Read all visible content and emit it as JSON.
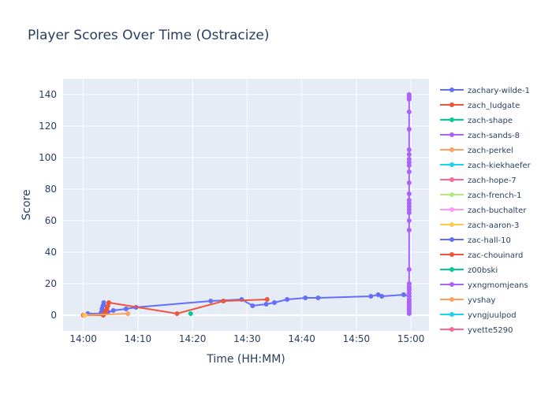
{
  "chart_data": {
    "type": "line",
    "title": "Player Scores Over Time (Ostracize)",
    "xlabel": "Time (HH:MM)",
    "ylabel": "Score",
    "x_ticks": [
      "14:00",
      "14:10",
      "14:20",
      "14:30",
      "14:40",
      "14:50",
      "15:00"
    ],
    "x_range_minutes": [
      -3.7,
      63.3
    ],
    "y_ticks": [
      0,
      20,
      40,
      60,
      80,
      100,
      120,
      140
    ],
    "ylim": [
      -10,
      150
    ],
    "grid": true,
    "legend_placement": "right",
    "series": [
      {
        "name": "zachary-wilde-1",
        "color": "#636efa",
        "x": [
          "14:00:50",
          "14:03:10",
          "14:03:20",
          "14:03:25",
          "14:03:35",
          "14:03:45",
          "14:04:30",
          "14:05:30",
          "14:07:50",
          "14:09:40",
          "14:23:20",
          "14:29:00",
          "14:31:00",
          "14:33:30",
          "14:35:00",
          "14:37:20",
          "14:40:40",
          "14:43:00",
          "14:52:40",
          "14:54:00",
          "14:54:40",
          "14:58:40",
          "14:59:40"
        ],
        "y": [
          1,
          1,
          2,
          4,
          6,
          8,
          2,
          3,
          4,
          5,
          9,
          10,
          6,
          7,
          8,
          10,
          11,
          11,
          12,
          13,
          12,
          13,
          12
        ]
      },
      {
        "name": "zach_ludgate",
        "color": "#ef553b",
        "x": [
          "14:00:00",
          "14:03:40",
          "14:03:50",
          "14:04:00",
          "14:04:10",
          "14:04:20",
          "14:04:30",
          "14:04:40",
          "14:17:10",
          "14:25:40",
          "14:33:40"
        ],
        "y": [
          0,
          0,
          1,
          2,
          3,
          4,
          6,
          8,
          1,
          9,
          10
        ]
      },
      {
        "name": "zach-shape",
        "color": "#00cc96",
        "x": [
          "14:19:40"
        ],
        "y": [
          1
        ]
      },
      {
        "name": "zach-sands-8",
        "color": "#ab63fa",
        "x": [
          "14:59:40",
          "14:59:40",
          "14:59:40",
          "14:59:40",
          "14:59:40",
          "14:59:40",
          "14:59:40",
          "14:59:40",
          "14:59:40",
          "14:59:40",
          "14:59:40",
          "14:59:40",
          "14:59:40",
          "14:59:40",
          "14:59:40",
          "14:59:40",
          "14:59:40",
          "14:59:40",
          "14:59:40",
          "14:59:40",
          "14:59:40",
          "14:59:40",
          "14:59:40",
          "14:59:40",
          "14:59:40",
          "14:59:40",
          "14:59:40",
          "14:59:40",
          "14:59:40",
          "14:59:40",
          "14:59:40",
          "14:59:40",
          "14:59:40",
          "14:59:40",
          "14:59:40",
          "14:59:40",
          "14:59:40",
          "14:59:40",
          "14:59:40",
          "14:59:40"
        ],
        "y": [
          1,
          2,
          3,
          4,
          5,
          6,
          7,
          8,
          9,
          10,
          12,
          14,
          16,
          18,
          20,
          29,
          54,
          60,
          65,
          67,
          69,
          71,
          73,
          77,
          84,
          91,
          95,
          97,
          99,
          102,
          105,
          118,
          129,
          137,
          138,
          139,
          140,
          20,
          17,
          14
        ]
      },
      {
        "name": "zach-perkel",
        "color": "#ffa15a",
        "x": [
          "14:00:10",
          "14:08:10"
        ],
        "y": [
          0,
          1
        ]
      },
      {
        "name": "zach-kiekhaefer",
        "color": "#19d3f3",
        "x": [],
        "y": []
      },
      {
        "name": "zach-hope-7",
        "color": "#ff6692",
        "x": [],
        "y": []
      },
      {
        "name": "zach-french-1",
        "color": "#b6e880",
        "x": [],
        "y": []
      },
      {
        "name": "zach-buchalter",
        "color": "#ff97ff",
        "x": [],
        "y": []
      },
      {
        "name": "zach-aaron-3",
        "color": "#fecb52",
        "x": [
          "14:00:20"
        ],
        "y": [
          0
        ]
      },
      {
        "name": "zac-hall-10",
        "color": "#636efa",
        "x": [],
        "y": []
      },
      {
        "name": "zac-chouinard",
        "color": "#ef553b",
        "x": [],
        "y": []
      },
      {
        "name": "z00bski",
        "color": "#00cc96",
        "x": [],
        "y": []
      },
      {
        "name": "yxngmomjeans",
        "color": "#ab63fa",
        "x": [],
        "y": []
      },
      {
        "name": "yvshay",
        "color": "#ffa15a",
        "x": [],
        "y": []
      },
      {
        "name": "yvngjuulpod",
        "color": "#19d3f3",
        "x": [],
        "y": []
      },
      {
        "name": "yvette5290",
        "color": "#ff6692",
        "x": [],
        "y": []
      }
    ]
  }
}
